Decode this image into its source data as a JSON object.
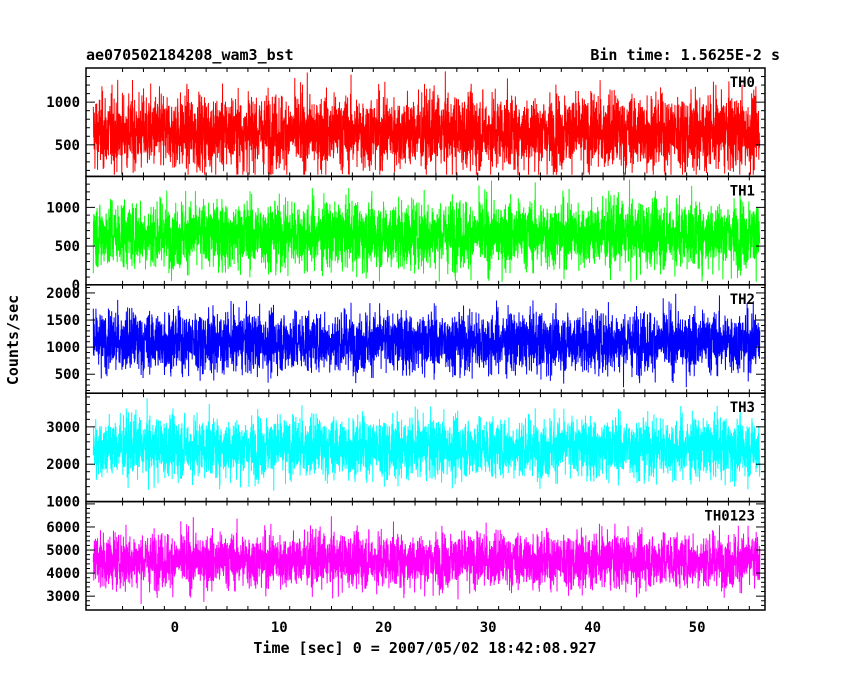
{
  "chart_data": {
    "type": "line",
    "title_left": "ae070502184208_wam3_bst",
    "title_right": "Bin time: 1.5625E-2 s",
    "xlabel": "Time [sec] 0 = 2007/05/02 18:42:08.927",
    "ylabel": "Counts/sec",
    "xlim": [
      -8.5,
      56.5
    ],
    "x_ticks": [
      0,
      10,
      20,
      30,
      40,
      50
    ],
    "data_range": [
      -7.8,
      56.0
    ],
    "panels": [
      {
        "name": "TH0",
        "color": "#ff0000",
        "ylim": [
          130,
          1400
        ],
        "y_ticks": [
          500,
          1000
        ],
        "mean": 650,
        "spread": 260,
        "low": 150,
        "high": 1380
      },
      {
        "name": "TH1",
        "color": "#00ff00",
        "ylim": [
          0,
          1400
        ],
        "y_ticks": [
          0,
          500,
          1000
        ],
        "mean": 650,
        "spread": 260,
        "low": 40,
        "high": 1380
      },
      {
        "name": "TH2",
        "color": "#0000ff",
        "ylim": [
          150,
          2150
        ],
        "y_ticks": [
          500,
          1000,
          1500,
          2000
        ],
        "mean": 1100,
        "spread": 330,
        "low": 260,
        "high": 2120
      },
      {
        "name": "TH3",
        "color": "#00ffff",
        "ylim": [
          1000,
          3900
        ],
        "y_ticks": [
          1000,
          2000,
          3000
        ],
        "mean": 2450,
        "spread": 480,
        "low": 1050,
        "high": 3850
      },
      {
        "name": "TH0123",
        "color": "#ff00ff",
        "ylim": [
          2400,
          7100
        ],
        "y_ticks": [
          3000,
          4000,
          5000,
          6000
        ],
        "mean": 4550,
        "spread": 700,
        "low": 2650,
        "high": 7000
      }
    ]
  }
}
